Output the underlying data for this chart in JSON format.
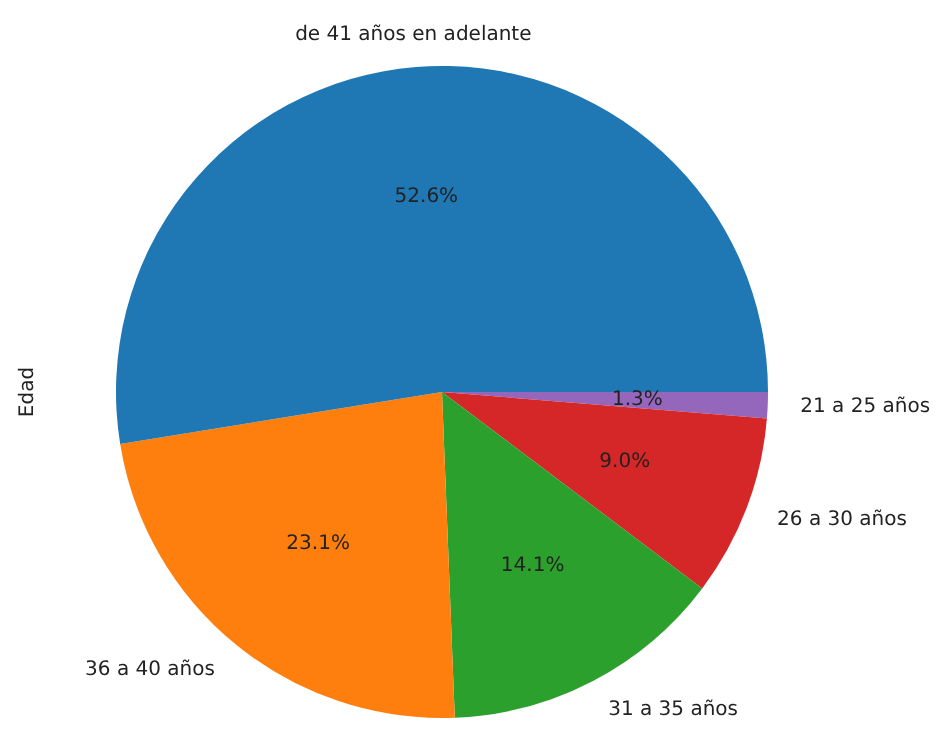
{
  "chart_data": {
    "type": "pie",
    "ylabel": "Edad",
    "categories": [
      "de 41 años en adelante",
      "36 a 40 años",
      "31 a 35 años",
      "26 a 30 años",
      "21 a 25 años"
    ],
    "values": [
      52.6,
      23.1,
      14.1,
      9.0,
      1.3
    ],
    "value_labels": [
      "52.6%",
      "23.1%",
      "14.1%",
      "9.0%",
      "1.3%"
    ],
    "colors": [
      "#1f77b4",
      "#ff7f0e",
      "#2ca02c",
      "#d62728",
      "#9467bd"
    ],
    "legend": false
  }
}
